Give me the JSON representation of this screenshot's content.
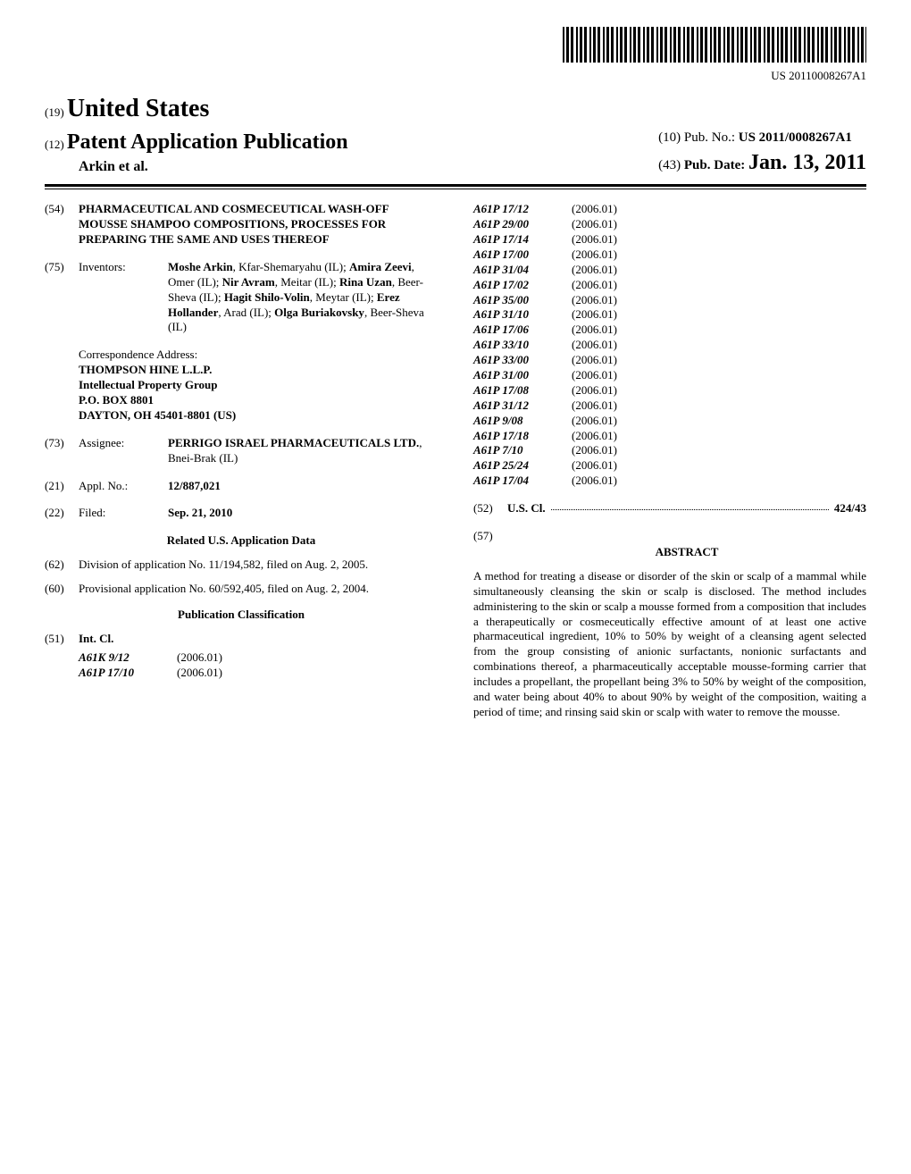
{
  "barcode_text": "US 20110008267A1",
  "header": {
    "country_num": "(19)",
    "country": "United States",
    "pub_type_num": "(12)",
    "pub_type": "Patent Application Publication",
    "authors": "Arkin et al.",
    "pubno_num": "(10)",
    "pubno_label": "Pub. No.:",
    "pubno": "US 2011/0008267A1",
    "pubdate_num": "(43)",
    "pubdate_label": "Pub. Date:",
    "pubdate": "Jan. 13, 2011"
  },
  "title": {
    "num": "(54)",
    "text": "PHARMACEUTICAL AND COSMECEUTICAL WASH-OFF MOUSSE SHAMPOO COMPOSITIONS, PROCESSES FOR PREPARING THE SAME AND USES THEREOF"
  },
  "inventors": {
    "num": "(75)",
    "label": "Inventors:",
    "list": [
      {
        "name": "Moshe Arkin",
        "loc": ", Kfar-Shemaryahu (IL); "
      },
      {
        "name": "Amira Zeevi",
        "loc": ", Omer (IL); "
      },
      {
        "name": "Nir Avram",
        "loc": ", Meitar (IL); "
      },
      {
        "name": "Rina Uzan",
        "loc": ", Beer-Sheva (IL); "
      },
      {
        "name": "Hagit Shilo-Volin",
        "loc": ", Meytar (IL); "
      },
      {
        "name": "Erez Hollander",
        "loc": ", Arad (IL); "
      },
      {
        "name": "Olga Buriakovsky",
        "loc": ", Beer-Sheva (IL)"
      }
    ]
  },
  "correspondence": {
    "label": "Correspondence Address:",
    "lines": [
      "THOMPSON HINE L.L.P.",
      "Intellectual Property Group",
      "P.O. BOX 8801",
      "DAYTON, OH 45401-8801 (US)"
    ]
  },
  "assignee": {
    "num": "(73)",
    "label": "Assignee:",
    "name": "PERRIGO ISRAEL PHARMACEUTICALS LTD.",
    "loc": ", Bnei-Brak (IL)"
  },
  "appl_no": {
    "num": "(21)",
    "label": "Appl. No.:",
    "value": "12/887,021"
  },
  "filed": {
    "num": "(22)",
    "label": "Filed:",
    "value": "Sep. 21, 2010"
  },
  "related_heading": "Related U.S. Application Data",
  "related": [
    {
      "num": "(62)",
      "text": "Division of application No. 11/194,582, filed on Aug. 2, 2005."
    },
    {
      "num": "(60)",
      "text": "Provisional application No. 60/592,405, filed on Aug. 2, 2004."
    }
  ],
  "pub_class_heading": "Publication Classification",
  "intcl": {
    "num": "(51)",
    "label": "Int. Cl.",
    "left": [
      {
        "code": "A61K 9/12",
        "year": "(2006.01)"
      },
      {
        "code": "A61P 17/10",
        "year": "(2006.01)"
      }
    ],
    "right": [
      {
        "code": "A61P 17/12",
        "year": "(2006.01)"
      },
      {
        "code": "A61P 29/00",
        "year": "(2006.01)"
      },
      {
        "code": "A61P 17/14",
        "year": "(2006.01)"
      },
      {
        "code": "A61P 17/00",
        "year": "(2006.01)"
      },
      {
        "code": "A61P 31/04",
        "year": "(2006.01)"
      },
      {
        "code": "A61P 17/02",
        "year": "(2006.01)"
      },
      {
        "code": "A61P 35/00",
        "year": "(2006.01)"
      },
      {
        "code": "A61P 31/10",
        "year": "(2006.01)"
      },
      {
        "code": "A61P 17/06",
        "year": "(2006.01)"
      },
      {
        "code": "A61P 33/10",
        "year": "(2006.01)"
      },
      {
        "code": "A61P 33/00",
        "year": "(2006.01)"
      },
      {
        "code": "A61P 31/00",
        "year": "(2006.01)"
      },
      {
        "code": "A61P 17/08",
        "year": "(2006.01)"
      },
      {
        "code": "A61P 31/12",
        "year": "(2006.01)"
      },
      {
        "code": "A61P 9/08",
        "year": "(2006.01)"
      },
      {
        "code": "A61P 17/18",
        "year": "(2006.01)"
      },
      {
        "code": "A61P 7/10",
        "year": "(2006.01)"
      },
      {
        "code": "A61P 25/24",
        "year": "(2006.01)"
      },
      {
        "code": "A61P 17/04",
        "year": "(2006.01)"
      }
    ]
  },
  "uscl": {
    "num": "(52)",
    "label": "U.S. Cl.",
    "value": "424/43"
  },
  "abstract": {
    "num": "(57)",
    "label": "ABSTRACT",
    "text": "A method for treating a disease or disorder of the skin or scalp of a mammal while simultaneously cleansing the skin or scalp is disclosed. The method includes administering to the skin or scalp a mousse formed from a composition that includes a therapeutically or cosmeceutically effective amount of at least one active pharmaceutical ingredient, 10% to 50% by weight of a cleansing agent selected from the group consisting of anionic surfactants, nonionic surfactants and combinations thereof, a pharmaceutically acceptable mousse-forming carrier that includes a propellant, the propellant being 3% to 50% by weight of the composition, and water being about 40% to about 90% by weight of the composition, waiting a period of time; and rinsing said skin or scalp with water to remove the mousse."
  }
}
